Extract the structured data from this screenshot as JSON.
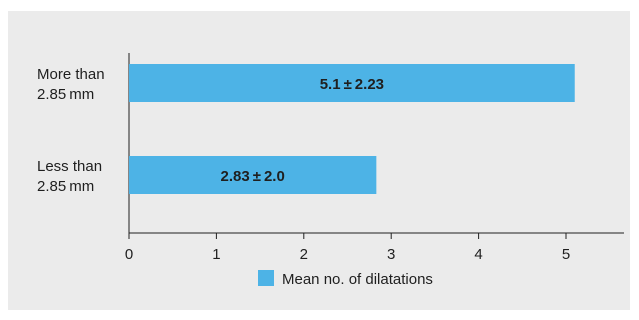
{
  "chart_data": {
    "type": "bar",
    "orientation": "horizontal",
    "categories": [
      {
        "lines": [
          "More than",
          "2.85 mm"
        ]
      },
      {
        "lines": [
          "Less than",
          "2.85 mm"
        ]
      }
    ],
    "series": [
      {
        "name": "Mean no. of dilatations",
        "values": [
          5.1,
          2.83
        ],
        "labels": [
          "5.1 ± 2.23",
          "2.83 ± 2.0"
        ]
      }
    ],
    "xlim": [
      0,
      5.6
    ],
    "xticks": [
      0,
      1,
      2,
      3,
      4,
      5
    ],
    "xlabel": "",
    "ylabel": "",
    "title": "",
    "grid": false,
    "legend_position": "bottom",
    "colors": {
      "bar": "#4db3e6",
      "axis": "#1f1f1f",
      "panel": "#ebebeb"
    }
  }
}
